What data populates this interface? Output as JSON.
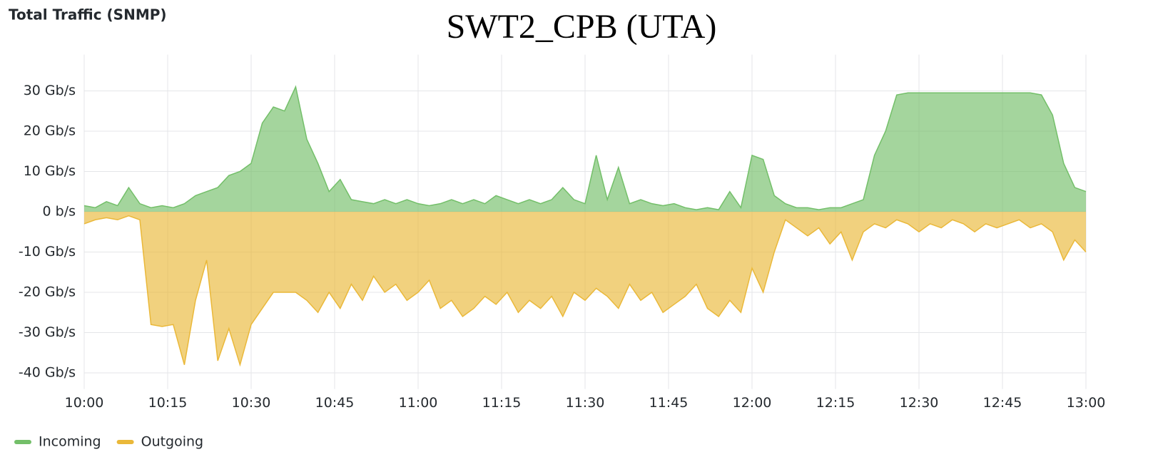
{
  "chart_data": {
    "type": "area",
    "panel_title": "Total Traffic (SNMP)",
    "title": "SWT2_CPB  (UTA)",
    "x": [
      "10:00",
      "10:02",
      "10:04",
      "10:06",
      "10:08",
      "10:10",
      "10:12",
      "10:14",
      "10:16",
      "10:18",
      "10:20",
      "10:22",
      "10:24",
      "10:26",
      "10:28",
      "10:30",
      "10:32",
      "10:34",
      "10:36",
      "10:38",
      "10:40",
      "10:42",
      "10:44",
      "10:46",
      "10:48",
      "10:50",
      "10:52",
      "10:54",
      "10:56",
      "10:58",
      "11:00",
      "11:02",
      "11:04",
      "11:06",
      "11:08",
      "11:10",
      "11:12",
      "11:14",
      "11:16",
      "11:18",
      "11:20",
      "11:22",
      "11:24",
      "11:26",
      "11:28",
      "11:30",
      "11:32",
      "11:34",
      "11:36",
      "11:38",
      "11:40",
      "11:42",
      "11:44",
      "11:46",
      "11:48",
      "11:50",
      "11:52",
      "11:54",
      "11:56",
      "11:58",
      "12:00",
      "12:02",
      "12:04",
      "12:06",
      "12:08",
      "12:10",
      "12:12",
      "12:14",
      "12:16",
      "12:18",
      "12:20",
      "12:22",
      "12:24",
      "12:26",
      "12:28",
      "12:30",
      "12:32",
      "12:34",
      "12:36",
      "12:38",
      "12:40",
      "12:42",
      "12:44",
      "12:46",
      "12:48",
      "12:50",
      "12:52",
      "12:54",
      "12:56",
      "12:58",
      "13:00"
    ],
    "series": [
      {
        "name": "Incoming",
        "color": "#73bf69",
        "values": [
          1.5,
          1,
          2.5,
          1.5,
          6,
          2,
          1,
          1.5,
          1,
          2,
          4,
          5,
          6,
          9,
          10,
          12,
          22,
          26,
          25,
          31,
          18,
          12,
          5,
          8,
          3,
          2.5,
          2,
          3,
          2,
          3,
          2,
          1.5,
          2,
          3,
          2,
          3,
          2,
          4,
          3,
          2,
          3,
          2,
          3,
          6,
          3,
          2,
          14,
          3,
          11,
          2,
          3,
          2,
          1.5,
          2,
          1,
          0.5,
          1,
          0.5,
          5,
          1,
          14,
          13,
          4,
          2,
          1,
          1,
          0.5,
          1,
          1,
          2,
          3,
          14,
          20,
          29,
          29.5,
          29.5,
          29.5,
          29.5,
          29.5,
          29.5,
          29.5,
          29.5,
          29.5,
          29.5,
          29.5,
          29.5,
          29,
          24,
          12,
          6,
          5
        ]
      },
      {
        "name": "Outgoing",
        "color": "#eab839",
        "values": [
          -3,
          -2,
          -1.5,
          -2,
          -1,
          -2,
          -28,
          -28.5,
          -28,
          -38,
          -22,
          -12,
          -37,
          -29,
          -38,
          -28,
          -24,
          -20,
          -20,
          -20,
          -22,
          -25,
          -20,
          -24,
          -18,
          -22,
          -16,
          -20,
          -18,
          -22,
          -20,
          -17,
          -24,
          -22,
          -26,
          -24,
          -21,
          -23,
          -20,
          -25,
          -22,
          -24,
          -21,
          -26,
          -20,
          -22,
          -19,
          -21,
          -24,
          -18,
          -22,
          -20,
          -25,
          -23,
          -21,
          -18,
          -24,
          -26,
          -22,
          -25,
          -14,
          -20,
          -10,
          -2,
          -4,
          -6,
          -4,
          -8,
          -5,
          -12,
          -5,
          -3,
          -4,
          -2,
          -3,
          -5,
          -3,
          -4,
          -2,
          -3,
          -5,
          -3,
          -4,
          -3,
          -2,
          -4,
          -3,
          -5,
          -12,
          -7,
          -10
        ]
      }
    ],
    "xlim": [
      "10:00",
      "13:00"
    ],
    "xticks": [
      "10:00",
      "10:15",
      "10:30",
      "10:45",
      "11:00",
      "11:15",
      "11:30",
      "11:45",
      "12:00",
      "12:15",
      "12:30",
      "12:45",
      "13:00"
    ],
    "ylim": [
      -44,
      39
    ],
    "yticks": [
      {
        "value": 30,
        "label": "30 Gb/s"
      },
      {
        "value": 20,
        "label": "20 Gb/s"
      },
      {
        "value": 10,
        "label": "10 Gb/s"
      },
      {
        "value": 0,
        "label": "0 b/s"
      },
      {
        "value": -10,
        "label": "-10 Gb/s"
      },
      {
        "value": -20,
        "label": "-20 Gb/s"
      },
      {
        "value": -30,
        "label": "-30 Gb/s"
      },
      {
        "value": -40,
        "label": "-40 Gb/s"
      }
    ],
    "grid": true,
    "legend": "bottom-left"
  }
}
